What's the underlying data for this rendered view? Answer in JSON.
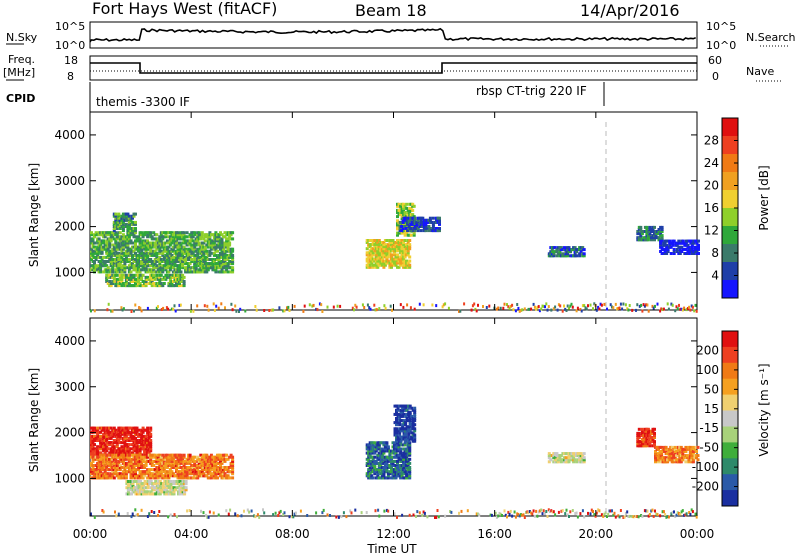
{
  "header": {
    "site": "Fort Hays West (fitACF)",
    "beam": "Beam 18",
    "date": "14/Apr/2016"
  },
  "aux": {
    "nsky_label": "N.Sky",
    "nsky_ticks": [
      "10^5",
      "10^0"
    ],
    "nsearch_label": "N.Search",
    "nsearch_ticks": [
      "10^5",
      "10^0"
    ],
    "freq_label": "Freq.",
    "freq_unit": "[MHz]",
    "freq_ticks": [
      "18",
      "8"
    ],
    "nave_label": "Nave",
    "nave_ticks": [
      "60",
      "0"
    ],
    "cpid_label": "CPID",
    "cpid_left": "themis -3300 IF",
    "cpid_right": "rbsp CT-trig 220 IF"
  },
  "chart_data": [
    {
      "type": "heatmap",
      "panel": "power",
      "xlabel": "Time UT",
      "ylabel": "Slant Range [km]",
      "xlim_hours": [
        0,
        24
      ],
      "ylim": [
        180,
        4500
      ],
      "xticks": [
        "00:00",
        "04:00",
        "08:00",
        "12:00",
        "16:00",
        "20:00",
        "00:00"
      ],
      "yticks": [
        1000,
        2000,
        3000,
        4000
      ],
      "colorbar": {
        "label": "Power [dB]",
        "ticks": [
          "4",
          "8",
          "12",
          "16",
          "20",
          "24",
          "28"
        ],
        "colors": [
          "#1515ff",
          "#1f3fa8",
          "#3a7a6a",
          "#2fa83a",
          "#8fcf2a",
          "#f0cf30",
          "#f0a020",
          "#f07a15",
          "#ee4020",
          "#e01010"
        ]
      },
      "echo_regions": [
        {
          "t0": 0.0,
          "t1": 5.6,
          "r0": 1000,
          "r1": 1900,
          "level": 0.35
        },
        {
          "t0": 0.6,
          "t1": 3.7,
          "r0": 700,
          "r1": 950,
          "level": 0.4
        },
        {
          "t0": 0.9,
          "t1": 1.8,
          "r0": 1900,
          "r1": 2300,
          "level": 0.3
        },
        {
          "t0": 10.9,
          "t1": 12.6,
          "r0": 1100,
          "r1": 1700,
          "level": 0.55
        },
        {
          "t0": 12.1,
          "t1": 12.8,
          "r0": 1800,
          "r1": 2500,
          "level": 0.45
        },
        {
          "t0": 12.2,
          "t1": 13.8,
          "r0": 1900,
          "r1": 2200,
          "level": 0.15
        },
        {
          "t0": 18.1,
          "t1": 19.5,
          "r0": 1350,
          "r1": 1550,
          "level": 0.2
        },
        {
          "t0": 21.6,
          "t1": 22.6,
          "r0": 1700,
          "r1": 2000,
          "level": 0.25
        },
        {
          "t0": 22.5,
          "t1": 24.0,
          "r0": 1400,
          "r1": 1700,
          "level": 0.05
        }
      ],
      "ground_band": {
        "r0": 180,
        "r1": 350,
        "t0": 0.0,
        "t1": 24.0
      }
    },
    {
      "type": "heatmap",
      "panel": "velocity",
      "xlabel": "Time UT",
      "ylabel": "Slant Range [km]",
      "xlim_hours": [
        0,
        24
      ],
      "ylim": [
        180,
        4500
      ],
      "xticks": [
        "00:00",
        "04:00",
        "08:00",
        "12:00",
        "16:00",
        "20:00",
        "00:00"
      ],
      "yticks": [
        1000,
        2000,
        3000,
        4000
      ],
      "colorbar": {
        "label": "Velocity [m s⁻¹]",
        "ticks": [
          "200",
          "100",
          "50",
          "15",
          "-15",
          "-50",
          "-100",
          "-200"
        ],
        "colors": [
          "#1a2fa0",
          "#2a5aa8",
          "#2e8a6a",
          "#3fae3a",
          "#a8d27a",
          "#c8c8c8",
          "#f0d070",
          "#f5a020",
          "#f07a15",
          "#ee4020",
          "#e01010"
        ]
      },
      "echo_regions": [
        {
          "t0": 0.0,
          "t1": 2.4,
          "r0": 1500,
          "r1": 2100,
          "level": 0.95
        },
        {
          "t0": 0.0,
          "t1": 5.6,
          "r0": 1000,
          "r1": 1500,
          "level": 0.78
        },
        {
          "t0": 1.4,
          "t1": 3.8,
          "r0": 650,
          "r1": 950,
          "level": 0.5
        },
        {
          "t0": 10.9,
          "t1": 12.6,
          "r0": 1000,
          "r1": 1800,
          "level": 0.15
        },
        {
          "t0": 12.0,
          "t1": 12.8,
          "r0": 1800,
          "r1": 2600,
          "level": 0.05
        },
        {
          "t0": 18.1,
          "t1": 19.5,
          "r0": 1350,
          "r1": 1550,
          "level": 0.5
        },
        {
          "t0": 21.6,
          "t1": 22.3,
          "r0": 1700,
          "r1": 2100,
          "level": 0.9
        },
        {
          "t0": 22.3,
          "t1": 24.0,
          "r0": 1350,
          "r1": 1700,
          "level": 0.75
        }
      ],
      "ground_band": {
        "r0": 180,
        "r1": 350,
        "t0": 0.0,
        "t1": 24.0
      }
    }
  ]
}
